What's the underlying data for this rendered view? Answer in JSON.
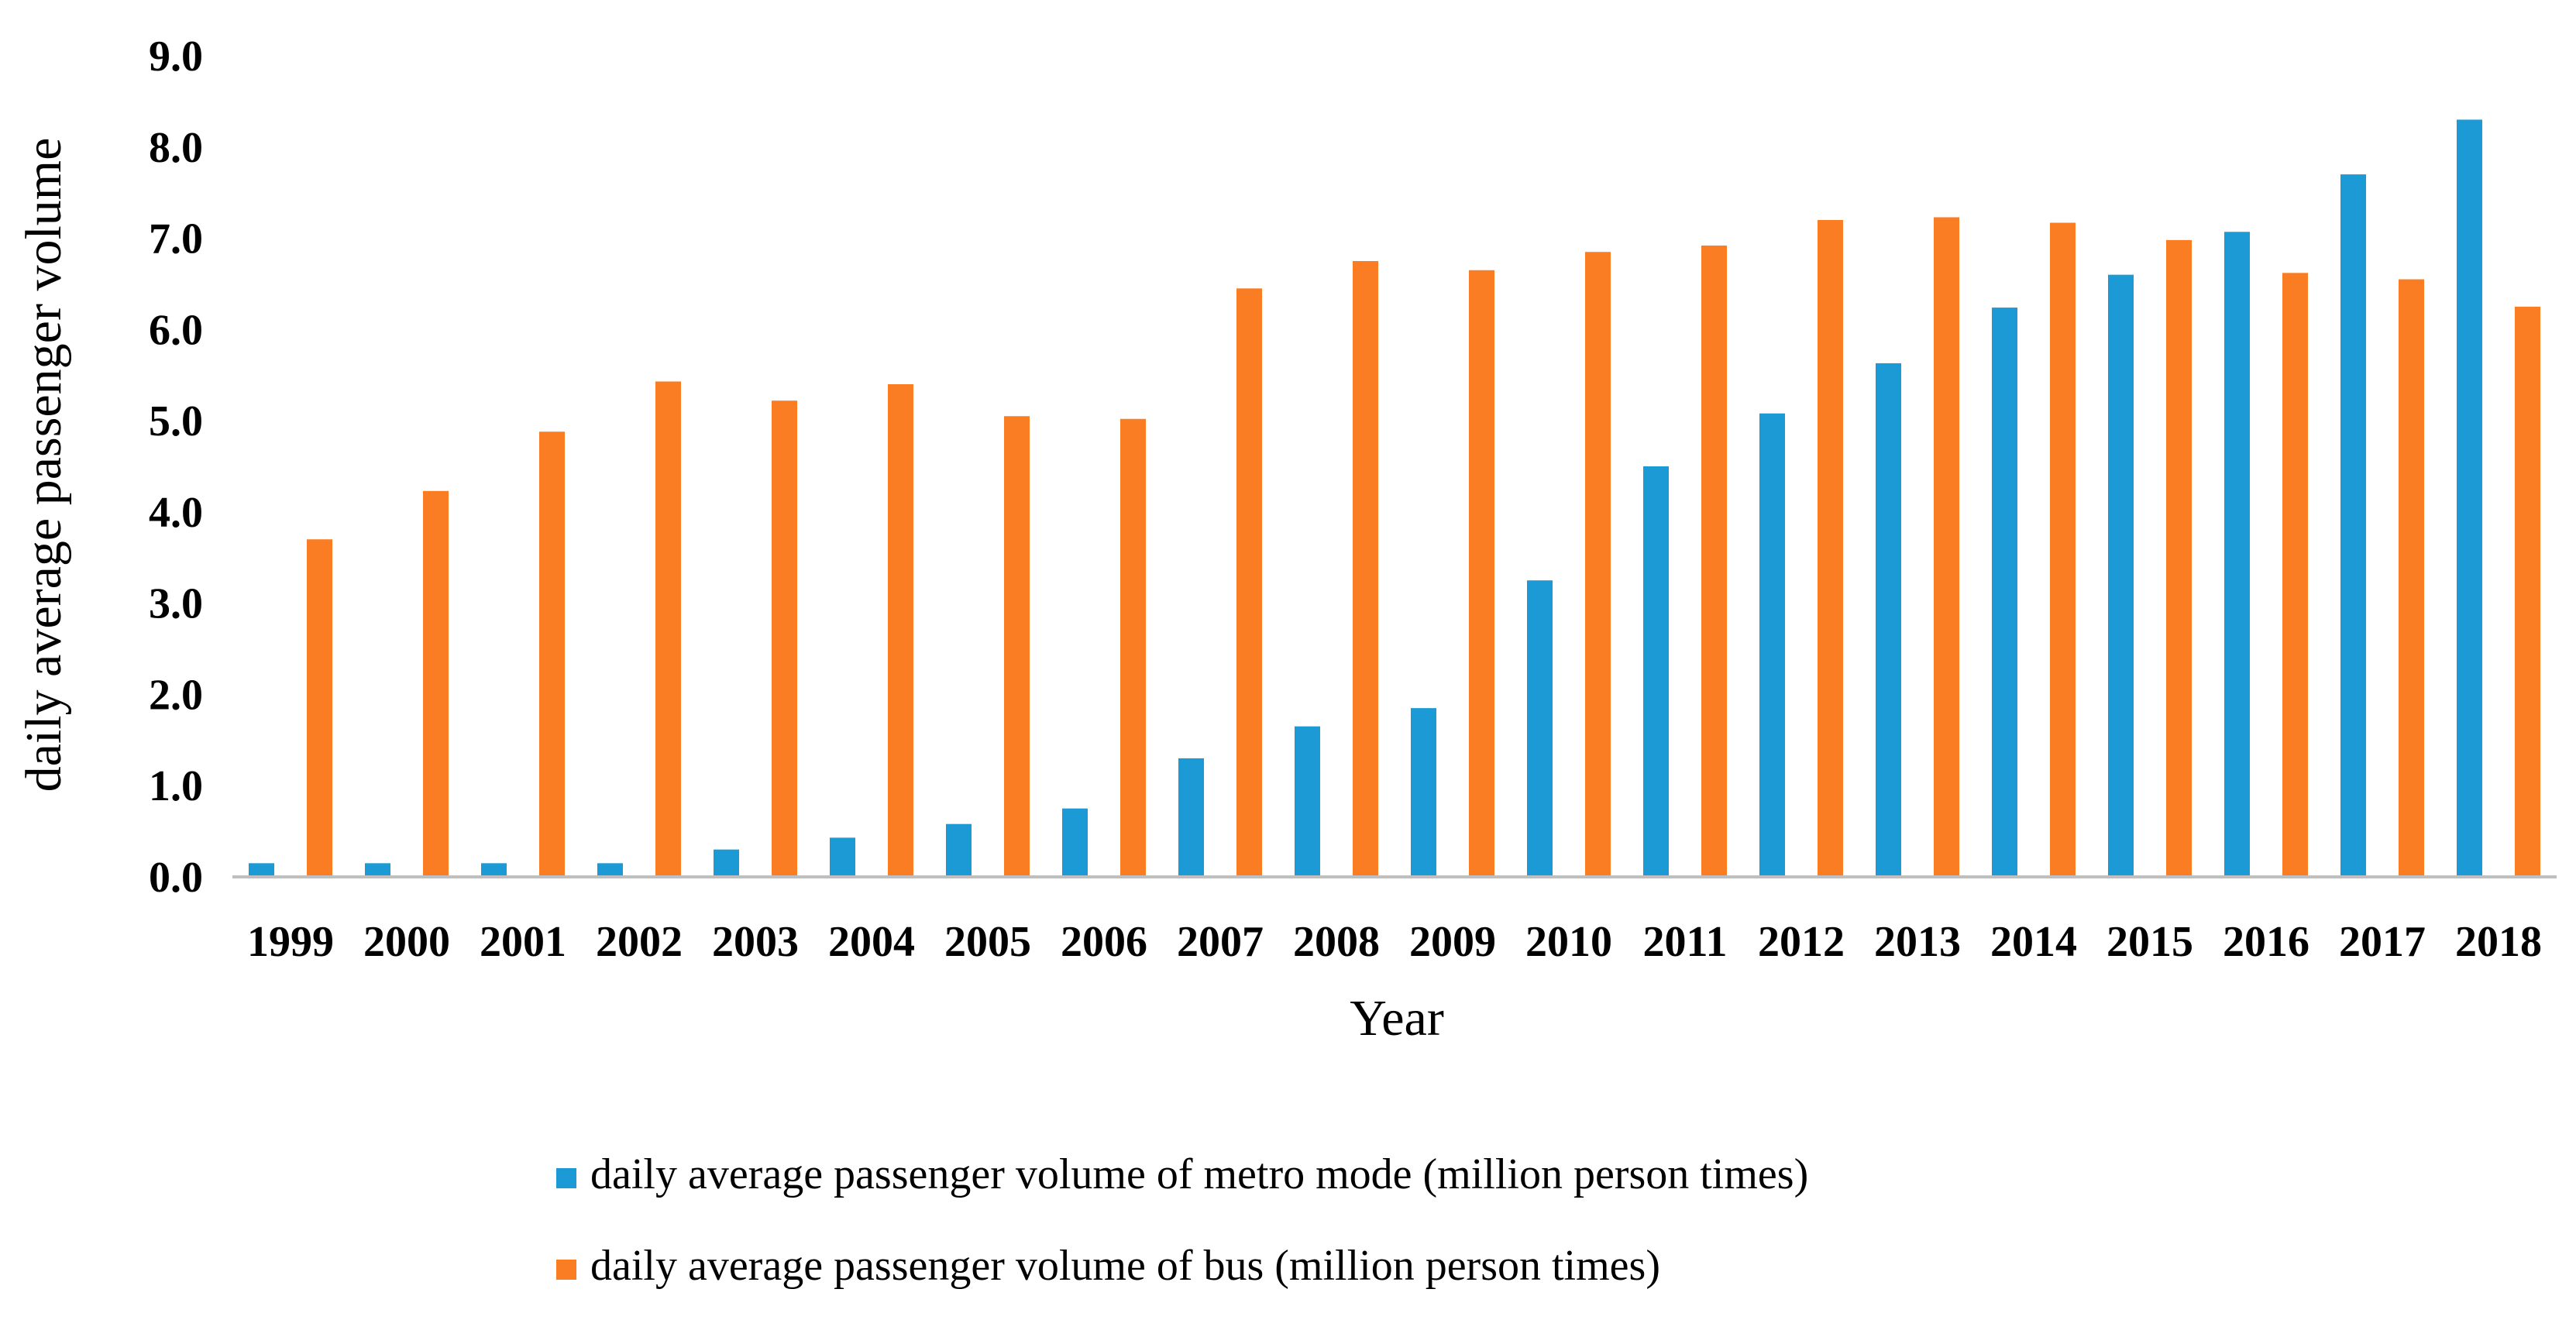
{
  "chart_data": {
    "type": "bar",
    "title": "",
    "xlabel": "Year",
    "ylabel": "daily average passenger volume",
    "ylim": [
      0,
      9
    ],
    "yticks": [
      "0.0",
      "1.0",
      "2.0",
      "3.0",
      "4.0",
      "5.0",
      "6.0",
      "7.0",
      "8.0",
      "9.0"
    ],
    "grid": false,
    "legend_position": "bottom",
    "categories": [
      "1999",
      "2000",
      "2001",
      "2002",
      "2003",
      "2004",
      "2005",
      "2006",
      "2007",
      "2008",
      "2009",
      "2010",
      "2011",
      "2012",
      "2013",
      "2014",
      "2015",
      "2016",
      "2017",
      "2018"
    ],
    "series": [
      {
        "name": "daily average passenger volume of metro mode (million person times)",
        "color": "#1b9ad6",
        "values": [
          0.15,
          0.15,
          0.15,
          0.15,
          0.3,
          0.43,
          0.58,
          0.75,
          1.3,
          1.65,
          1.85,
          3.25,
          4.5,
          5.08,
          5.63,
          6.24,
          6.6,
          7.07,
          7.7,
          8.3
        ]
      },
      {
        "name": "daily average passenger volume of bus (million person times)",
        "color": "#fa7d24",
        "values": [
          3.7,
          4.23,
          4.88,
          5.43,
          5.22,
          5.4,
          5.05,
          5.02,
          6.45,
          6.75,
          6.65,
          6.85,
          6.92,
          7.2,
          7.23,
          7.17,
          6.98,
          6.62,
          6.55,
          6.25
        ]
      }
    ]
  }
}
